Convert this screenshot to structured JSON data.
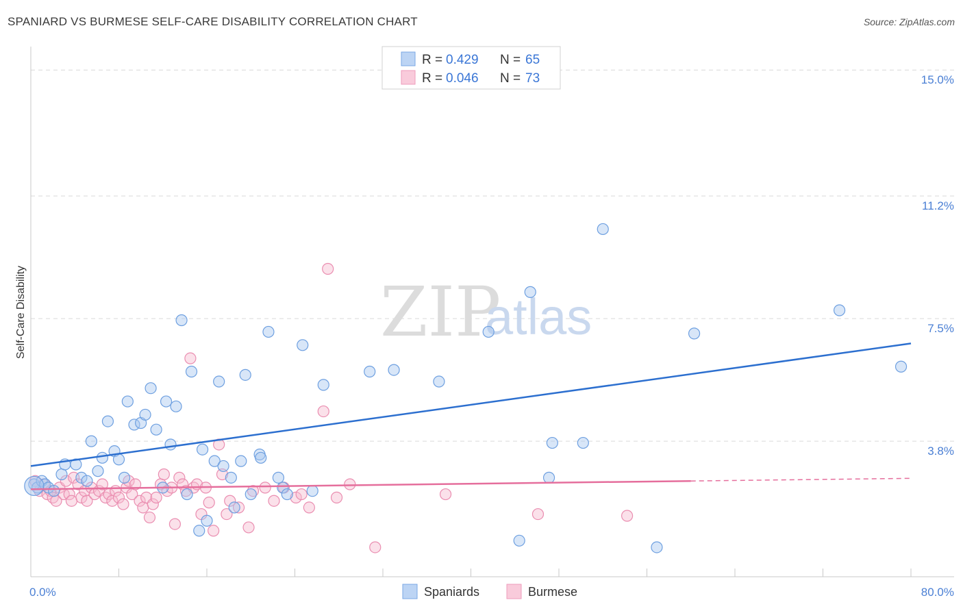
{
  "title": "SPANIARD VS BURMESE SELF-CARE DISABILITY CORRELATION CHART",
  "source": "Source: ZipAtlas.com",
  "watermark": {
    "part1": "ZIP",
    "part2": "atlas"
  },
  "chart_data": {
    "type": "scatter",
    "title": "SPANIARD VS BURMESE SELF-CARE DISABILITY CORRELATION CHART",
    "xlabel": "",
    "ylabel": "Self-Care Disability",
    "xlim": [
      0,
      80
    ],
    "ylim": [
      0,
      15.5
    ],
    "x_tick_labels": [
      "0.0%",
      "80.0%"
    ],
    "y_ticks": [
      {
        "value": 3.8,
        "label": "3.8%"
      },
      {
        "value": 7.5,
        "label": "7.5%"
      },
      {
        "value": 11.2,
        "label": "11.2%"
      },
      {
        "value": 15.0,
        "label": "15.0%"
      }
    ],
    "grid": true,
    "legend_top": [
      {
        "r_label": "R =",
        "r_value": "0.429",
        "n_label": "N =",
        "n_value": "65"
      },
      {
        "r_label": "R =",
        "r_value": "0.046",
        "n_label": "N =",
        "n_value": "73"
      }
    ],
    "series": [
      {
        "name": "Spaniards",
        "color": "#a9c8f0",
        "stroke": "#6d9fe0",
        "trend_color": "#2c6fcf",
        "trend": {
          "x0": 0,
          "y0": 3.05,
          "x1": 80,
          "y1": 6.75
        },
        "points": [
          [
            0.3,
            2.5
          ],
          [
            0.6,
            2.4
          ],
          [
            1.0,
            2.6
          ],
          [
            1.3,
            2.5
          ],
          [
            1.6,
            2.4
          ],
          [
            2.1,
            2.3
          ],
          [
            2.8,
            2.8
          ],
          [
            3.1,
            3.1
          ],
          [
            4.1,
            3.1
          ],
          [
            4.6,
            2.7
          ],
          [
            5.1,
            2.6
          ],
          [
            5.5,
            3.8
          ],
          [
            6.1,
            2.9
          ],
          [
            6.5,
            3.3
          ],
          [
            7.0,
            4.4
          ],
          [
            7.6,
            3.5
          ],
          [
            8.0,
            3.25
          ],
          [
            8.5,
            2.7
          ],
          [
            8.8,
            5.0
          ],
          [
            9.4,
            4.3
          ],
          [
            10.0,
            4.35
          ],
          [
            10.4,
            4.6
          ],
          [
            10.9,
            5.4
          ],
          [
            11.4,
            4.15
          ],
          [
            12.3,
            5.0
          ],
          [
            12.0,
            2.4
          ],
          [
            12.7,
            3.7
          ],
          [
            13.2,
            4.85
          ],
          [
            13.7,
            7.45
          ],
          [
            14.2,
            2.2
          ],
          [
            14.6,
            5.9
          ],
          [
            15.3,
            1.1
          ],
          [
            15.6,
            3.55
          ],
          [
            16.0,
            1.4
          ],
          [
            16.7,
            3.2
          ],
          [
            17.1,
            5.6
          ],
          [
            17.5,
            3.05
          ],
          [
            18.2,
            2.7
          ],
          [
            18.5,
            1.8
          ],
          [
            19.1,
            3.2
          ],
          [
            19.5,
            5.8
          ],
          [
            20.0,
            2.2
          ],
          [
            20.8,
            3.4
          ],
          [
            20.9,
            3.3
          ],
          [
            21.6,
            7.1
          ],
          [
            22.5,
            2.7
          ],
          [
            22.9,
            2.4
          ],
          [
            23.3,
            2.2
          ],
          [
            24.7,
            6.7
          ],
          [
            25.6,
            2.3
          ],
          [
            26.6,
            5.5
          ],
          [
            30.8,
            5.9
          ],
          [
            33.0,
            5.95
          ],
          [
            37.1,
            5.6
          ],
          [
            41.6,
            7.1
          ],
          [
            44.4,
            0.8
          ],
          [
            45.4,
            8.3
          ],
          [
            47.1,
            2.7
          ],
          [
            47.4,
            3.75
          ],
          [
            50.2,
            3.75
          ],
          [
            52.0,
            10.2
          ],
          [
            56.9,
            0.6
          ],
          [
            60.3,
            7.05
          ],
          [
            73.5,
            7.75
          ],
          [
            79.1,
            6.05
          ]
        ]
      },
      {
        "name": "Burmese",
        "color": "#f7bcd1",
        "stroke": "#ea8db0",
        "trend_color": "#e56e9c",
        "trend": {
          "x0": 0,
          "y0": 2.35,
          "x1": 60,
          "y1": 2.6
        },
        "trend_dashed": {
          "x0": 60,
          "y0": 2.6,
          "x1": 80,
          "y1": 2.68
        },
        "points": [
          [
            0.4,
            2.6
          ],
          [
            0.8,
            2.3
          ],
          [
            1.2,
            2.5
          ],
          [
            1.5,
            2.2
          ],
          [
            1.8,
            2.3
          ],
          [
            2.0,
            2.1
          ],
          [
            2.3,
            2.0
          ],
          [
            2.6,
            2.4
          ],
          [
            3.0,
            2.2
          ],
          [
            3.2,
            2.6
          ],
          [
            3.5,
            2.2
          ],
          [
            3.7,
            2.0
          ],
          [
            3.9,
            2.7
          ],
          [
            4.3,
            2.5
          ],
          [
            4.6,
            2.1
          ],
          [
            4.9,
            2.3
          ],
          [
            5.1,
            2.0
          ],
          [
            5.5,
            2.4
          ],
          [
            5.8,
            2.2
          ],
          [
            6.2,
            2.3
          ],
          [
            6.5,
            2.5
          ],
          [
            6.8,
            2.1
          ],
          [
            7.1,
            2.2
          ],
          [
            7.4,
            2.0
          ],
          [
            7.7,
            2.3
          ],
          [
            8.0,
            2.1
          ],
          [
            8.4,
            1.9
          ],
          [
            8.7,
            2.4
          ],
          [
            8.9,
            2.6
          ],
          [
            9.2,
            2.2
          ],
          [
            9.5,
            2.5
          ],
          [
            9.9,
            2.0
          ],
          [
            10.2,
            1.8
          ],
          [
            10.5,
            2.1
          ],
          [
            10.8,
            1.5
          ],
          [
            11.1,
            1.9
          ],
          [
            11.4,
            2.1
          ],
          [
            11.8,
            2.5
          ],
          [
            12.1,
            2.8
          ],
          [
            12.4,
            2.3
          ],
          [
            12.8,
            2.4
          ],
          [
            13.1,
            1.3
          ],
          [
            13.5,
            2.7
          ],
          [
            13.8,
            2.5
          ],
          [
            14.1,
            2.3
          ],
          [
            14.5,
            6.3
          ],
          [
            14.8,
            2.4
          ],
          [
            15.1,
            2.5
          ],
          [
            15.5,
            1.6
          ],
          [
            15.9,
            2.4
          ],
          [
            16.2,
            1.95
          ],
          [
            16.6,
            1.1
          ],
          [
            17.1,
            3.7
          ],
          [
            17.4,
            2.8
          ],
          [
            17.8,
            1.6
          ],
          [
            18.1,
            2.0
          ],
          [
            18.9,
            1.8
          ],
          [
            19.8,
            1.2
          ],
          [
            20.2,
            2.3
          ],
          [
            21.3,
            2.4
          ],
          [
            22.1,
            2.0
          ],
          [
            23.0,
            2.4
          ],
          [
            24.1,
            2.1
          ],
          [
            24.6,
            2.2
          ],
          [
            25.3,
            1.8
          ],
          [
            26.6,
            4.7
          ],
          [
            27.0,
            9.0
          ],
          [
            27.8,
            2.1
          ],
          [
            29.0,
            2.5
          ],
          [
            31.3,
            0.6
          ],
          [
            37.7,
            2.2
          ],
          [
            46.1,
            1.6
          ],
          [
            54.2,
            1.55
          ]
        ]
      }
    ]
  },
  "bottom_legend": {
    "spaniards": "Spaniards",
    "burmese": "Burmese"
  },
  "colors": {
    "blue": "#2c6fcf",
    "pink": "#e56e9c",
    "grid": "#d9d9d9"
  }
}
